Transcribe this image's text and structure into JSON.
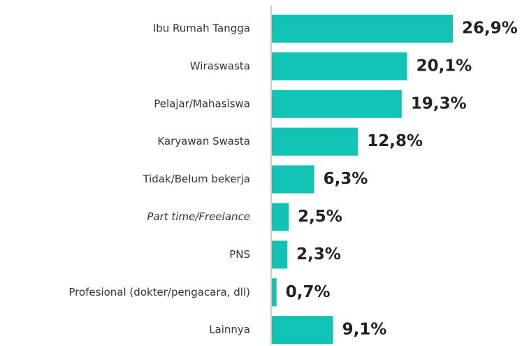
{
  "chart_data": {
    "type": "bar",
    "orientation": "horizontal",
    "categories": [
      "Ibu Rumah Tangga",
      "Wiraswasta",
      "Pelajar/Mahasiswa",
      "Karyawan Swasta",
      "Tidak/Belum bekerja",
      "Part time/Freelance",
      "PNS",
      "Profesional (dokter/pengacara, dll)",
      "Lainnya"
    ],
    "values": [
      26.9,
      20.1,
      19.3,
      12.8,
      6.3,
      2.5,
      2.3,
      0.7,
      9.1
    ],
    "value_labels": [
      "26,9%",
      "20,1%",
      "19,3%",
      "12,8%",
      "6,3%",
      "2,5%",
      "2,3%",
      "0,7%",
      "9,1%"
    ],
    "color": "#12c4b5"
  }
}
